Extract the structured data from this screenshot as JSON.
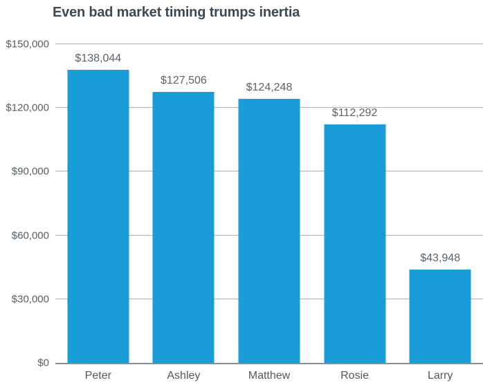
{
  "chart": {
    "title": "Even bad market timing trumps inertia"
  },
  "chart_data": {
    "type": "bar",
    "title": "Even bad market timing trumps inertia",
    "categories": [
      "Peter",
      "Ashley",
      "Matthew",
      "Rosie",
      "Larry"
    ],
    "values": [
      138044,
      127506,
      124248,
      112292,
      43948
    ],
    "value_labels": [
      "$138,044",
      "$127,506",
      "$124,248",
      "$112,292",
      "$43,948"
    ],
    "xlabel": "",
    "ylabel": "",
    "ylim": [
      0,
      150000
    ],
    "yticks": [
      0,
      30000,
      60000,
      90000,
      120000,
      150000
    ],
    "ytick_labels": [
      "$0",
      "$30,000",
      "$60,000",
      "$90,000",
      "$120,000",
      "$150,000"
    ],
    "grid": true,
    "legend": false,
    "colors": {
      "bar": "#1a9cd8",
      "title": "#3b4a54",
      "gridline": "#aab1b5",
      "axis_line": "#878f94",
      "value_label": "#58626a",
      "tick_label": "#545e65"
    }
  }
}
